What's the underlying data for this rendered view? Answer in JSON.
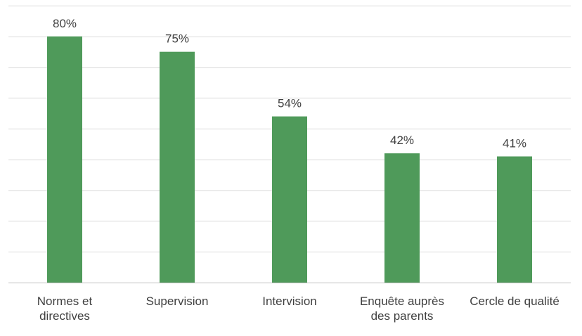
{
  "chart_data": {
    "type": "bar",
    "categories": [
      "Normes et directives",
      "Supervision",
      "Intervision",
      "Enquête auprès des parents",
      "Cercle de qualité"
    ],
    "category_lines": [
      [
        "Normes et",
        "directives"
      ],
      [
        "Supervision"
      ],
      [
        "Intervision"
      ],
      [
        "Enquête auprès",
        "des parents"
      ],
      [
        "Cercle de qualité"
      ]
    ],
    "values": [
      80,
      75,
      54,
      42,
      41
    ],
    "data_labels": [
      "80%",
      "75%",
      "54%",
      "42%",
      "41%"
    ],
    "ylim": [
      0,
      90
    ],
    "ytick_step": 10,
    "grid": true,
    "bar_color": "#4f9a5a",
    "title": "",
    "xlabel": "",
    "ylabel": ""
  }
}
